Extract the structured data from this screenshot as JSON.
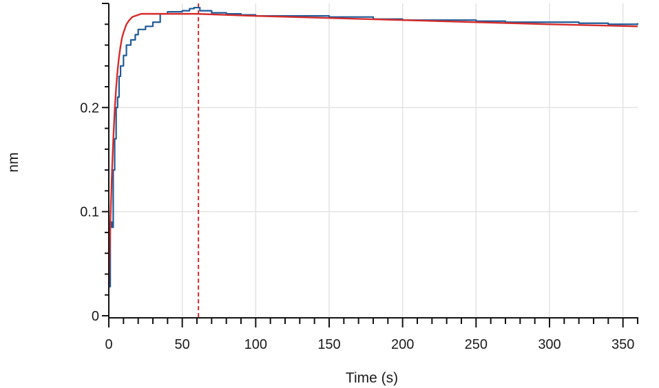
{
  "chart_data": {
    "type": "line",
    "title": "",
    "xlabel": "Time (s)",
    "ylabel": "nm",
    "xlim": [
      0,
      360
    ],
    "ylim": [
      -0.002,
      0.3
    ],
    "x_ticks": [
      0,
      50,
      100,
      150,
      200,
      250,
      300,
      350
    ],
    "x_tick_labels": [
      "0",
      "50",
      "100",
      "150",
      "200",
      "250",
      "300",
      "350"
    ],
    "y_ticks": [
      0,
      0.1,
      0.2
    ],
    "y_tick_labels": [
      "0",
      "0.1",
      "0.2"
    ],
    "grid": true,
    "legend": "none",
    "series": [
      {
        "color": "#1f5a96",
        "style": "measured",
        "x": [
          0,
          1,
          2,
          3,
          4,
          5,
          6,
          7,
          8,
          10,
          12,
          15,
          18,
          20,
          25,
          30,
          35,
          40,
          45,
          50,
          55,
          58,
          62,
          70,
          80,
          90,
          100,
          120,
          150,
          180,
          200,
          220,
          250,
          270,
          300,
          320,
          340,
          355,
          360
        ],
        "y": [
          0.028,
          0.09,
          0.085,
          0.14,
          0.17,
          0.2,
          0.21,
          0.23,
          0.24,
          0.25,
          0.26,
          0.265,
          0.27,
          0.275,
          0.278,
          0.282,
          0.29,
          0.292,
          0.292,
          0.293,
          0.295,
          0.296,
          0.293,
          0.291,
          0.29,
          0.289,
          0.288,
          0.288,
          0.287,
          0.285,
          0.284,
          0.284,
          0.283,
          0.282,
          0.282,
          0.281,
          0.28,
          0.28,
          0.281
        ]
      },
      {
        "color": "#d62b2b",
        "style": "fit",
        "x": [
          0,
          1,
          2,
          3,
          4,
          5,
          6,
          7,
          8,
          9,
          10,
          12,
          14,
          16,
          18,
          20,
          22,
          25,
          30,
          35,
          40,
          50,
          60,
          80,
          100,
          150,
          200,
          250,
          300,
          360
        ],
        "y": [
          0.03,
          0.086,
          0.132,
          0.168,
          0.197,
          0.219,
          0.236,
          0.249,
          0.259,
          0.267,
          0.272,
          0.28,
          0.284,
          0.287,
          0.288,
          0.289,
          0.29,
          0.29,
          0.29,
          0.29,
          0.29,
          0.29,
          0.29,
          0.289,
          0.288,
          0.286,
          0.284,
          0.282,
          0.28,
          0.278
        ]
      }
    ],
    "markers": [
      {
        "x": 0,
        "color": "#d62b2b",
        "style": "dashed"
      },
      {
        "x": 61,
        "color": "#d62b2b",
        "style": "dashed"
      }
    ]
  }
}
